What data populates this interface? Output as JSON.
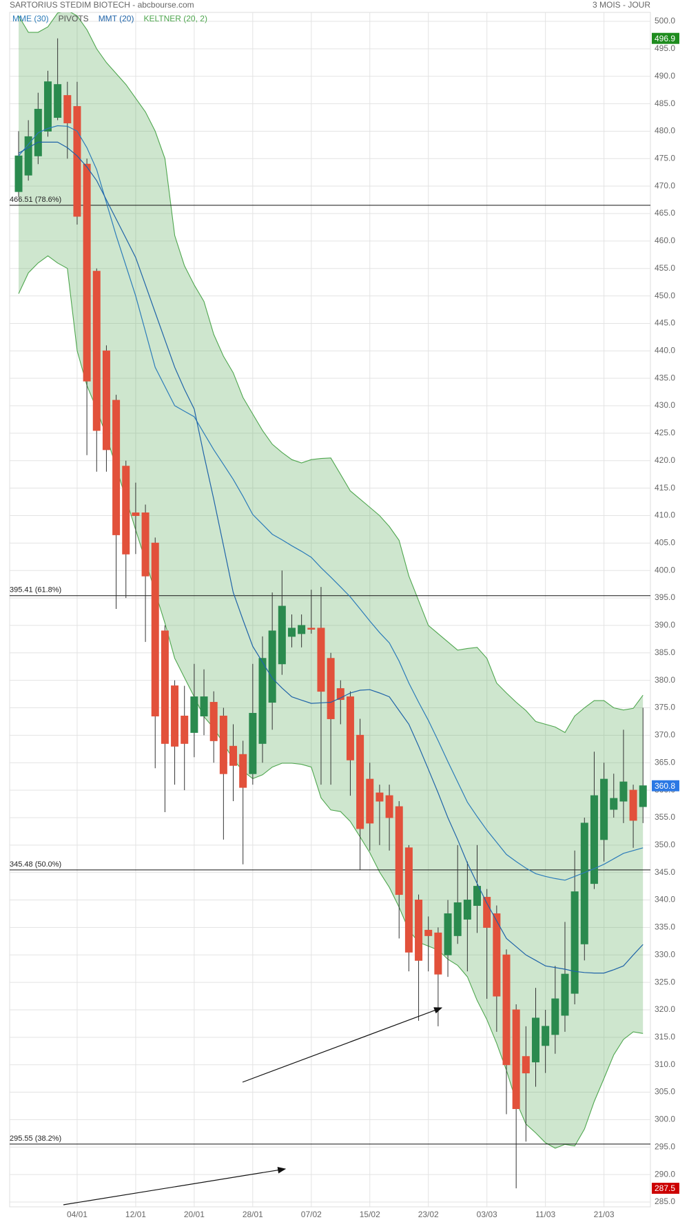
{
  "chart_data": {
    "type": "candlestick",
    "title": "SARTORIUS STEDIM BIOTECH - abcbourse.com",
    "period": "3 MOIS - JOUR",
    "up_color": "#2a8a4e",
    "down_color": "#e2513b",
    "grid": true,
    "categories": [
      null,
      null,
      null,
      null,
      null,
      null,
      "04/01",
      null,
      null,
      null,
      null,
      null,
      "12/01",
      null,
      null,
      null,
      null,
      null,
      "20/01",
      null,
      null,
      null,
      null,
      null,
      "28/01",
      null,
      null,
      null,
      null,
      null,
      "07/02",
      null,
      null,
      null,
      null,
      null,
      "15/02",
      null,
      null,
      null,
      null,
      null,
      "23/02",
      null,
      null,
      null,
      null,
      null,
      "03/03",
      null,
      null,
      null,
      null,
      null,
      "11/03",
      null,
      null,
      null,
      null,
      null,
      "21/03",
      null,
      null,
      null,
      null
    ],
    "open": [
      469,
      472,
      475.5,
      480,
      482.5,
      486.5,
      484.5,
      474,
      454.5,
      440,
      431,
      419,
      410.5,
      410.5,
      405,
      389,
      379,
      373.5,
      370.5,
      373.5,
      376,
      373.5,
      368,
      366.5,
      363,
      368.5,
      376,
      383,
      388,
      388.5,
      389.5,
      389.5,
      384,
      378.5,
      377,
      370,
      362,
      359.5,
      359,
      357,
      349.5,
      340,
      334.5,
      334,
      330,
      333.5,
      336.5,
      339,
      340.5,
      337.5,
      330,
      320,
      311.5,
      310.5,
      313.5,
      315.5,
      319,
      323,
      332,
      343,
      351,
      356.5,
      358,
      360,
      357
    ],
    "high": [
      480,
      482,
      487,
      491,
      496.9,
      489,
      489,
      475,
      455,
      441,
      432,
      420,
      416,
      412,
      406,
      390,
      380,
      379,
      383,
      382,
      378,
      375,
      372,
      369,
      383,
      388,
      396,
      400,
      392,
      392,
      396.5,
      397,
      385,
      380,
      378,
      373,
      365,
      361,
      361,
      358,
      350,
      341,
      337,
      335,
      340,
      350,
      347,
      350,
      342,
      339,
      331,
      321,
      317,
      324,
      320,
      328,
      336,
      349,
      355,
      367,
      365,
      363,
      371,
      361,
      375
    ],
    "low": [
      468,
      471,
      474,
      479,
      482,
      475,
      463,
      421,
      418,
      418,
      393,
      395,
      403,
      387,
      364,
      356,
      361,
      360,
      366,
      370,
      365,
      351,
      358,
      346.5,
      361,
      365,
      371,
      381,
      386,
      386,
      388.5,
      361,
      361,
      372,
      359,
      345.5,
      349,
      350,
      349,
      333,
      327,
      318,
      327,
      317,
      326,
      332,
      327,
      334,
      322,
      316,
      301,
      287.5,
      296,
      306,
      308.5,
      312,
      316,
      321,
      329,
      342,
      347,
      355,
      354,
      349.5,
      354
    ],
    "close": [
      475.5,
      479,
      484,
      489,
      488.5,
      481.5,
      464.5,
      434.5,
      425.5,
      422,
      406.5,
      403,
      410,
      399,
      373.5,
      368.5,
      368,
      368.5,
      377,
      377,
      369,
      363,
      364.5,
      360.5,
      374,
      384,
      389,
      393.5,
      389.5,
      390,
      389.3,
      378,
      373,
      376.5,
      365.5,
      353,
      354,
      358,
      355,
      341,
      330.5,
      329,
      333.5,
      326.5,
      337.5,
      339.5,
      340,
      342.5,
      335,
      322.5,
      310,
      302,
      308.5,
      318.5,
      317,
      322,
      326.5,
      341.5,
      354,
      359,
      362,
      358.5,
      361.5,
      354.5,
      360.8
    ],
    "series": [
      {
        "name": "MME (30)",
        "color": "#2b7bb9",
        "values": [
          475.5,
          477.6,
          479.7,
          480.5,
          481,
          480.9,
          480,
          477,
          473,
          467,
          461,
          455.5,
          450,
          443.5,
          437,
          433.5,
          430,
          429,
          428,
          425,
          422,
          419.3,
          416.6,
          413.5,
          410.2,
          408.4,
          406.6,
          405.6,
          404.5,
          403.5,
          402.4,
          400.5,
          398.8,
          397,
          395.2,
          393,
          390.8,
          388.7,
          386.8,
          383.5,
          379.5,
          376,
          372.7,
          369,
          365.2,
          361.5,
          357.8,
          355.2,
          352.7,
          350.5,
          348.3,
          347,
          345.8,
          344.8,
          344.3,
          343.9,
          343.6,
          344.3,
          345,
          345.7,
          346.5,
          347.5,
          348.5,
          349,
          349.5
        ]
      },
      {
        "name": "PIVOTS",
        "color": "#555555"
      },
      {
        "name": "MMT (20)",
        "color": "#1f63a8",
        "values": [
          476,
          477,
          478,
          478,
          478,
          477,
          475.5,
          473.5,
          471,
          467.5,
          464,
          460.5,
          457,
          452,
          447,
          442,
          437,
          433,
          429.4,
          421,
          413,
          404.5,
          396,
          391,
          386.2,
          383.3,
          380.4,
          378.6,
          377,
          376.4,
          375.8,
          375.9,
          376,
          376.8,
          377.7,
          378.2,
          378.3,
          377.7,
          377,
          374.5,
          372,
          368,
          363.8,
          359.5,
          355,
          351,
          346.7,
          343,
          339.4,
          336.2,
          333,
          331.5,
          330,
          329,
          328,
          327.7,
          327.4,
          327,
          326.8,
          326.7,
          326.7,
          327.3,
          328,
          330,
          331.9
        ]
      },
      {
        "name": "KELTNER (20, 2)",
        "color": "#4ea64e",
        "upper": [
          501,
          498,
          498,
          499,
          501.5,
          502,
          501,
          498.5,
          495,
          492.5,
          490.5,
          488.5,
          486,
          483.5,
          480,
          475,
          461,
          455.5,
          452,
          449,
          443,
          439,
          436,
          431.5,
          428.5,
          425.5,
          423,
          421.5,
          420.2,
          419.6,
          420.2,
          420.4,
          420.5,
          417.5,
          414.5,
          413,
          411.5,
          410,
          408,
          405.5,
          399,
          394.5,
          390,
          388.5,
          387,
          385.5,
          385.8,
          386,
          384,
          379.5,
          377.7,
          376,
          374.5,
          372.5,
          372,
          371.5,
          370.5,
          373.5,
          375,
          376.3,
          376.3,
          375,
          374.6,
          374.9,
          377.3
        ],
        "lower": [
          450.4,
          454.2,
          456,
          457.3,
          456,
          455,
          440,
          433.7,
          429.4,
          424.5,
          418.8,
          413.1,
          407.4,
          401.8,
          396.1,
          390.4,
          384,
          380.5,
          377,
          373.4,
          371.3,
          368.5,
          365.6,
          363.5,
          362.1,
          362.8,
          364.2,
          364.9,
          364.9,
          364.7,
          364.2,
          358.6,
          356.4,
          356.1,
          354.3,
          351.5,
          348.6,
          345.1,
          342.3,
          338.7,
          334.5,
          332.3,
          331.6,
          330.9,
          329.2,
          328.1,
          326,
          321.7,
          318.2,
          313.9,
          309,
          303.3,
          299.2,
          297.6,
          295.8,
          294.8,
          295.5,
          295.2,
          298.3,
          303.3,
          307.5,
          311.8,
          314.6,
          316,
          315.7
        ]
      }
    ],
    "levels": [
      {
        "value": 466.51,
        "label": "466.51  (78.6%)"
      },
      {
        "value": 395.41,
        "label": "395.41  (61.8%)"
      },
      {
        "value": 345.48,
        "label": "345.48  (50.0%)"
      },
      {
        "value": 295.55,
        "label": "295.55  (38.2%)"
      }
    ],
    "markers": [
      {
        "value": 496.9,
        "color": "#1e8c1e"
      },
      {
        "value": 360.8,
        "color": "#2b78e4"
      },
      {
        "value": 287.5,
        "color": "#cc0000"
      }
    ],
    "ylim": [
      285,
      500
    ],
    "yticks": [
      {
        "value": 500,
        "label": "500.0"
      },
      {
        "value": 495,
        "label": "495.0"
      },
      {
        "value": 490,
        "label": "490.0"
      },
      {
        "value": 485,
        "label": "485.0"
      },
      {
        "value": 480,
        "label": "480.0"
      },
      {
        "value": 475,
        "label": "475.0"
      },
      {
        "value": 470,
        "label": "470.0"
      },
      {
        "value": 465,
        "label": "465.0"
      },
      {
        "value": 460,
        "label": "460.0"
      },
      {
        "value": 455,
        "label": "455.0"
      },
      {
        "value": 450,
        "label": "450.0"
      },
      {
        "value": 445,
        "label": "445.0"
      },
      {
        "value": 440,
        "label": "440.0"
      },
      {
        "value": 435,
        "label": "435.0"
      },
      {
        "value": 430,
        "label": "430.0"
      },
      {
        "value": 425,
        "label": "425.0"
      },
      {
        "value": 420,
        "label": "420.0"
      },
      {
        "value": 415,
        "label": "415.0"
      },
      {
        "value": 410,
        "label": "410.0"
      },
      {
        "value": 405,
        "label": "405.0"
      },
      {
        "value": 400,
        "label": "400.0"
      },
      {
        "value": 395,
        "label": "395.0"
      },
      {
        "value": 390,
        "label": "390.0"
      },
      {
        "value": 385,
        "label": "385.0"
      },
      {
        "value": 380,
        "label": "380.0"
      },
      {
        "value": 375,
        "label": "375.0"
      },
      {
        "value": 370,
        "label": "370.0"
      },
      {
        "value": 365,
        "label": "365.0"
      },
      {
        "value": 360,
        "label": "360.0"
      },
      {
        "value": 355,
        "label": "355.0"
      },
      {
        "value": 350,
        "label": "350.0"
      },
      {
        "value": 345,
        "label": "345.0"
      },
      {
        "value": 340,
        "label": "340.0"
      },
      {
        "value": 335,
        "label": "335.0"
      },
      {
        "value": 330,
        "label": "330.0"
      },
      {
        "value": 325,
        "label": "325.0"
      },
      {
        "value": 320,
        "label": "320.0"
      },
      {
        "value": 315,
        "label": "315.0"
      },
      {
        "value": 310,
        "label": "310.0"
      },
      {
        "value": 305,
        "label": "305.0"
      },
      {
        "value": 300,
        "label": "300.0"
      },
      {
        "value": 295,
        "label": "295.0"
      },
      {
        "value": 290,
        "label": "290.0"
      },
      {
        "value": 285,
        "label": "285.0"
      }
    ]
  }
}
